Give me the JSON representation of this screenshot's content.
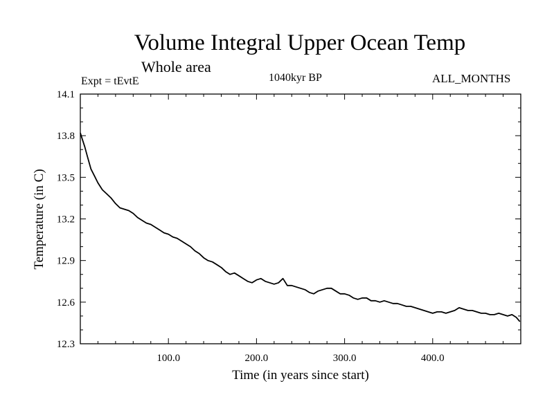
{
  "chart_data": {
    "type": "line",
    "title": "Volume Integral Upper Ocean Temp",
    "subtitle": "Whole area",
    "expt_label": "Expt = tEvtE",
    "period_label": "1040kyr BP",
    "months_label": "ALL_MONTHS",
    "xlabel": "Time (in years since start)",
    "ylabel": "Temperature (in C)",
    "xlim": [
      0,
      500
    ],
    "ylim": [
      12.3,
      14.1
    ],
    "xticks": [
      100,
      200,
      300,
      400
    ],
    "xtick_labels": [
      "100.0",
      "200.0",
      "300.0",
      "400.0"
    ],
    "yticks": [
      12.3,
      12.6,
      12.9,
      13.2,
      13.5,
      13.8,
      14.1
    ],
    "ytick_labels": [
      "12.3",
      "12.6",
      "12.9",
      "13.2",
      "13.5",
      "13.8",
      "14.1"
    ],
    "grid": false,
    "series": [
      {
        "name": "Temperature",
        "x": [
          0,
          2,
          5,
          8,
          12,
          16,
          20,
          25,
          30,
          35,
          40,
          45,
          50,
          55,
          60,
          65,
          70,
          75,
          80,
          85,
          90,
          95,
          100,
          105,
          110,
          115,
          120,
          125,
          130,
          135,
          140,
          145,
          150,
          155,
          160,
          165,
          170,
          175,
          180,
          185,
          190,
          195,
          200,
          205,
          210,
          215,
          220,
          225,
          230,
          235,
          240,
          245,
          250,
          255,
          260,
          265,
          270,
          275,
          280,
          285,
          290,
          295,
          300,
          305,
          310,
          315,
          320,
          325,
          330,
          335,
          340,
          345,
          350,
          355,
          360,
          365,
          370,
          375,
          380,
          385,
          390,
          395,
          400,
          405,
          410,
          415,
          420,
          425,
          430,
          435,
          440,
          445,
          450,
          455,
          460,
          465,
          470,
          475,
          480,
          485,
          490,
          495,
          499
        ],
        "values": [
          13.82,
          13.78,
          13.72,
          13.65,
          13.56,
          13.51,
          13.46,
          13.41,
          13.38,
          13.35,
          13.31,
          13.28,
          13.27,
          13.26,
          13.24,
          13.21,
          13.19,
          13.17,
          13.16,
          13.14,
          13.12,
          13.1,
          13.09,
          13.07,
          13.06,
          13.04,
          13.02,
          13.0,
          12.97,
          12.95,
          12.92,
          12.9,
          12.89,
          12.87,
          12.85,
          12.82,
          12.8,
          12.81,
          12.79,
          12.77,
          12.75,
          12.74,
          12.76,
          12.77,
          12.75,
          12.74,
          12.73,
          12.74,
          12.77,
          12.72,
          12.72,
          12.71,
          12.7,
          12.69,
          12.67,
          12.66,
          12.68,
          12.69,
          12.7,
          12.7,
          12.68,
          12.66,
          12.66,
          12.65,
          12.63,
          12.62,
          12.63,
          12.63,
          12.61,
          12.61,
          12.6,
          12.61,
          12.6,
          12.59,
          12.59,
          12.58,
          12.57,
          12.57,
          12.56,
          12.55,
          12.54,
          12.53,
          12.52,
          12.53,
          12.53,
          12.52,
          12.53,
          12.54,
          12.56,
          12.55,
          12.54,
          12.54,
          12.53,
          12.52,
          12.52,
          12.51,
          12.51,
          12.52,
          12.51,
          12.5,
          12.51,
          12.49,
          12.46
        ]
      }
    ]
  }
}
